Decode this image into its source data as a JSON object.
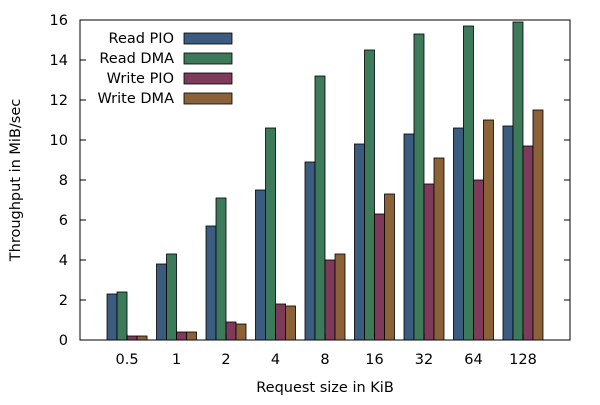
{
  "chart_data": {
    "type": "bar",
    "xlabel": "Request size in KiB",
    "ylabel": "Throughput in MiB/sec",
    "ylim": [
      0,
      16
    ],
    "yticks": [
      0,
      2,
      4,
      6,
      8,
      10,
      12,
      14,
      16
    ],
    "categories": [
      "0.5",
      "1",
      "2",
      "4",
      "8",
      "16",
      "32",
      "64",
      "128"
    ],
    "legend_position": "top-left",
    "grid": false,
    "series": [
      {
        "name": "Read PIO",
        "color": "#3b5b7f",
        "values": [
          2.3,
          3.8,
          5.7,
          7.5,
          8.9,
          9.8,
          10.3,
          10.6,
          10.7
        ]
      },
      {
        "name": "Read DMA",
        "color": "#3d7a5a",
        "values": [
          2.4,
          4.3,
          7.1,
          10.6,
          13.2,
          14.5,
          15.3,
          15.7,
          15.9
        ]
      },
      {
        "name": "Write PIO",
        "color": "#7d3a5a",
        "values": [
          0.2,
          0.4,
          0.9,
          1.8,
          4.0,
          6.3,
          7.8,
          8.0,
          9.7
        ]
      },
      {
        "name": "Write DMA",
        "color": "#8b6137",
        "values": [
          0.2,
          0.4,
          0.8,
          1.7,
          4.3,
          7.3,
          9.1,
          11.0,
          11.5
        ]
      }
    ]
  }
}
